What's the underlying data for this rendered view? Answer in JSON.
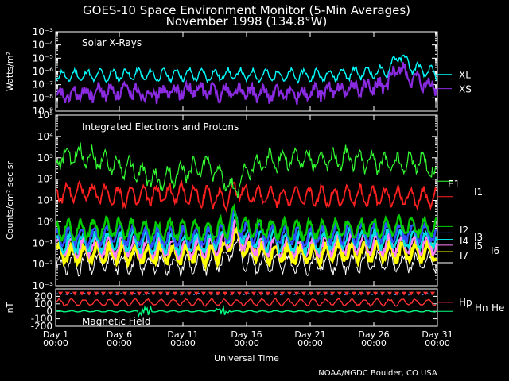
{
  "title_line1": "GOES-10 Space Environment Monitor (5-Min Averages)",
  "title_line2": "November 1998 (134.8°W)",
  "credit": "NOAA/NGDC Boulder, CO USA",
  "colors": {
    "background": "#000000",
    "axes": "#ffffff",
    "XL": "#00ffff",
    "XS": "#8a2be2",
    "E1": "#33ff33",
    "I1": "#ff2020",
    "I2": "#00cc00",
    "I3": "#3050ff",
    "I4": "#00e0e0",
    "I5": "#ff80ff",
    "I6": "#ffff00",
    "I7": "#ffffff",
    "Hp": "#ff3030",
    "Hn": "#5090ff",
    "He": "#00ff80"
  },
  "chart_data": [
    {
      "type": "line",
      "panel": "xray",
      "title": "Solar X-Rays",
      "ylabel": "Watts/m²",
      "yscale": "log",
      "ylim": [
        1e-09,
        0.001
      ],
      "ytick_labels": [
        "10⁻³",
        "10⁻⁴",
        "10⁻⁵",
        "10⁻⁶",
        "10⁻⁷",
        "10⁻⁸",
        "10⁻⁹"
      ],
      "x_unit": "day of month",
      "xlim": [
        1,
        31
      ],
      "series": [
        {
          "name": "XL",
          "x": [
            1,
            3,
            5,
            7,
            9,
            11,
            13,
            15,
            17,
            19,
            21,
            23,
            25,
            27,
            28,
            29,
            31
          ],
          "y": [
            4e-07,
            5e-07,
            5e-07,
            6e-07,
            5e-07,
            6e-07,
            5e-07,
            6e-07,
            5e-07,
            5e-07,
            5e-07,
            6e-07,
            8e-07,
            9e-07,
            2e-05,
            2e-06,
            6e-07
          ]
        },
        {
          "name": "XS",
          "x": [
            1,
            3,
            5,
            7,
            9,
            11,
            13,
            15,
            17,
            19,
            21,
            23,
            25,
            27,
            28,
            29,
            31
          ],
          "y": [
            1e-08,
            2e-08,
            3e-08,
            3e-08,
            2e-08,
            4e-08,
            3e-08,
            3e-08,
            2e-08,
            2e-08,
            2e-08,
            4e-08,
            6e-08,
            8e-08,
            3e-06,
            2e-07,
            5e-08
          ]
        }
      ]
    },
    {
      "type": "line",
      "panel": "particles",
      "title": "Integrated Electrons and Protons",
      "ylabel": "Counts/cm² sec sr",
      "yscale": "log",
      "ylim": [
        0.001,
        100000
      ],
      "ytick_labels": [
        "10⁵",
        "10⁴",
        "10³",
        "10²",
        "10¹",
        "10⁰",
        "10⁻¹",
        "10⁻²",
        "10⁻³"
      ],
      "xlim": [
        1,
        31
      ],
      "series": [
        {
          "name": "E1",
          "x": [
            1,
            3,
            5,
            7,
            9,
            11,
            13,
            14.5,
            15,
            16,
            18,
            20,
            22,
            24,
            26,
            28,
            30,
            31
          ],
          "y": [
            800,
            1500,
            600,
            300,
            80,
            200,
            500,
            60,
            20,
            300,
            800,
            900,
            700,
            1000,
            600,
            500,
            700,
            80
          ]
        },
        {
          "name": "I1",
          "x": [
            1,
            3,
            5,
            7,
            9,
            11,
            13,
            14.5,
            15,
            16,
            18,
            20,
            22,
            24,
            26,
            28,
            30,
            31
          ],
          "y": [
            20,
            25,
            20,
            15,
            18,
            20,
            15,
            12,
            30,
            20,
            15,
            15,
            15,
            18,
            15,
            15,
            15,
            15
          ]
        },
        {
          "name": "I2",
          "x": [
            1,
            5,
            9,
            13,
            14.5,
            15,
            16,
            20,
            24,
            28,
            31
          ],
          "y": [
            0.4,
            0.5,
            0.4,
            0.4,
            0.5,
            2.0,
            0.5,
            0.4,
            0.5,
            0.6,
            0.6
          ]
        },
        {
          "name": "I3",
          "x": [
            1,
            5,
            9,
            13,
            14.5,
            15,
            16,
            20,
            24,
            28,
            31
          ],
          "y": [
            0.2,
            0.25,
            0.2,
            0.2,
            0.3,
            1.5,
            0.3,
            0.2,
            0.3,
            0.3,
            0.3
          ]
        },
        {
          "name": "I4",
          "x": [
            1,
            5,
            9,
            13,
            14.5,
            15,
            16,
            20,
            24,
            28,
            31
          ],
          "y": [
            0.1,
            0.12,
            0.1,
            0.1,
            0.2,
            1.0,
            0.15,
            0.1,
            0.15,
            0.15,
            0.15
          ]
        },
        {
          "name": "I5",
          "x": [
            1,
            5,
            9,
            13,
            14.5,
            15,
            16,
            20,
            24,
            28,
            31
          ],
          "y": [
            0.06,
            0.07,
            0.06,
            0.06,
            0.1,
            0.5,
            0.08,
            0.06,
            0.08,
            0.08,
            0.08
          ]
        },
        {
          "name": "I6",
          "x": [
            1,
            5,
            9,
            13,
            14.5,
            15,
            16,
            20,
            24,
            28,
            31
          ],
          "y": [
            0.03,
            0.035,
            0.03,
            0.03,
            0.05,
            0.3,
            0.04,
            0.03,
            0.04,
            0.04,
            0.04
          ]
        },
        {
          "name": "I7",
          "x": [
            1,
            5,
            9,
            13,
            14.5,
            15,
            16,
            20,
            24,
            28,
            31
          ],
          "y": [
            0.01,
            0.012,
            0.01,
            0.01,
            0.02,
            0.1,
            0.012,
            0.01,
            0.012,
            0.012,
            0.012
          ]
        }
      ]
    },
    {
      "type": "line",
      "panel": "magnetic",
      "title": "Magnetic Field",
      "ylabel": "nT",
      "ylim": [
        -200,
        300
      ],
      "ytick_labels": [
        "200",
        "100",
        "0",
        "-100",
        "-200"
      ],
      "xlim": [
        1,
        31
      ],
      "x_tick_labels": [
        {
          "day": "Day 1",
          "time": "00:00"
        },
        {
          "day": "Day 6",
          "time": "00:00"
        },
        {
          "day": "Day 11",
          "time": "00:00"
        },
        {
          "day": "Day 16",
          "time": "00:00"
        },
        {
          "day": "Day 21",
          "time": "00:00"
        },
        {
          "day": "Day 26",
          "time": "00:00"
        },
        {
          "day": "Day 31",
          "time": "00:00"
        }
      ],
      "xlabel": "Universal Time",
      "series": [
        {
          "name": "Hp",
          "x": [
            1,
            31
          ],
          "y": [
            120,
            120
          ],
          "amplitude": 40
        },
        {
          "name": "Hn",
          "x": [
            1,
            31
          ],
          "y": [
            230,
            230
          ],
          "amplitude": 10
        },
        {
          "name": "He",
          "x": [
            1,
            31
          ],
          "y": [
            0,
            0
          ],
          "amplitude": 8
        }
      ]
    }
  ]
}
